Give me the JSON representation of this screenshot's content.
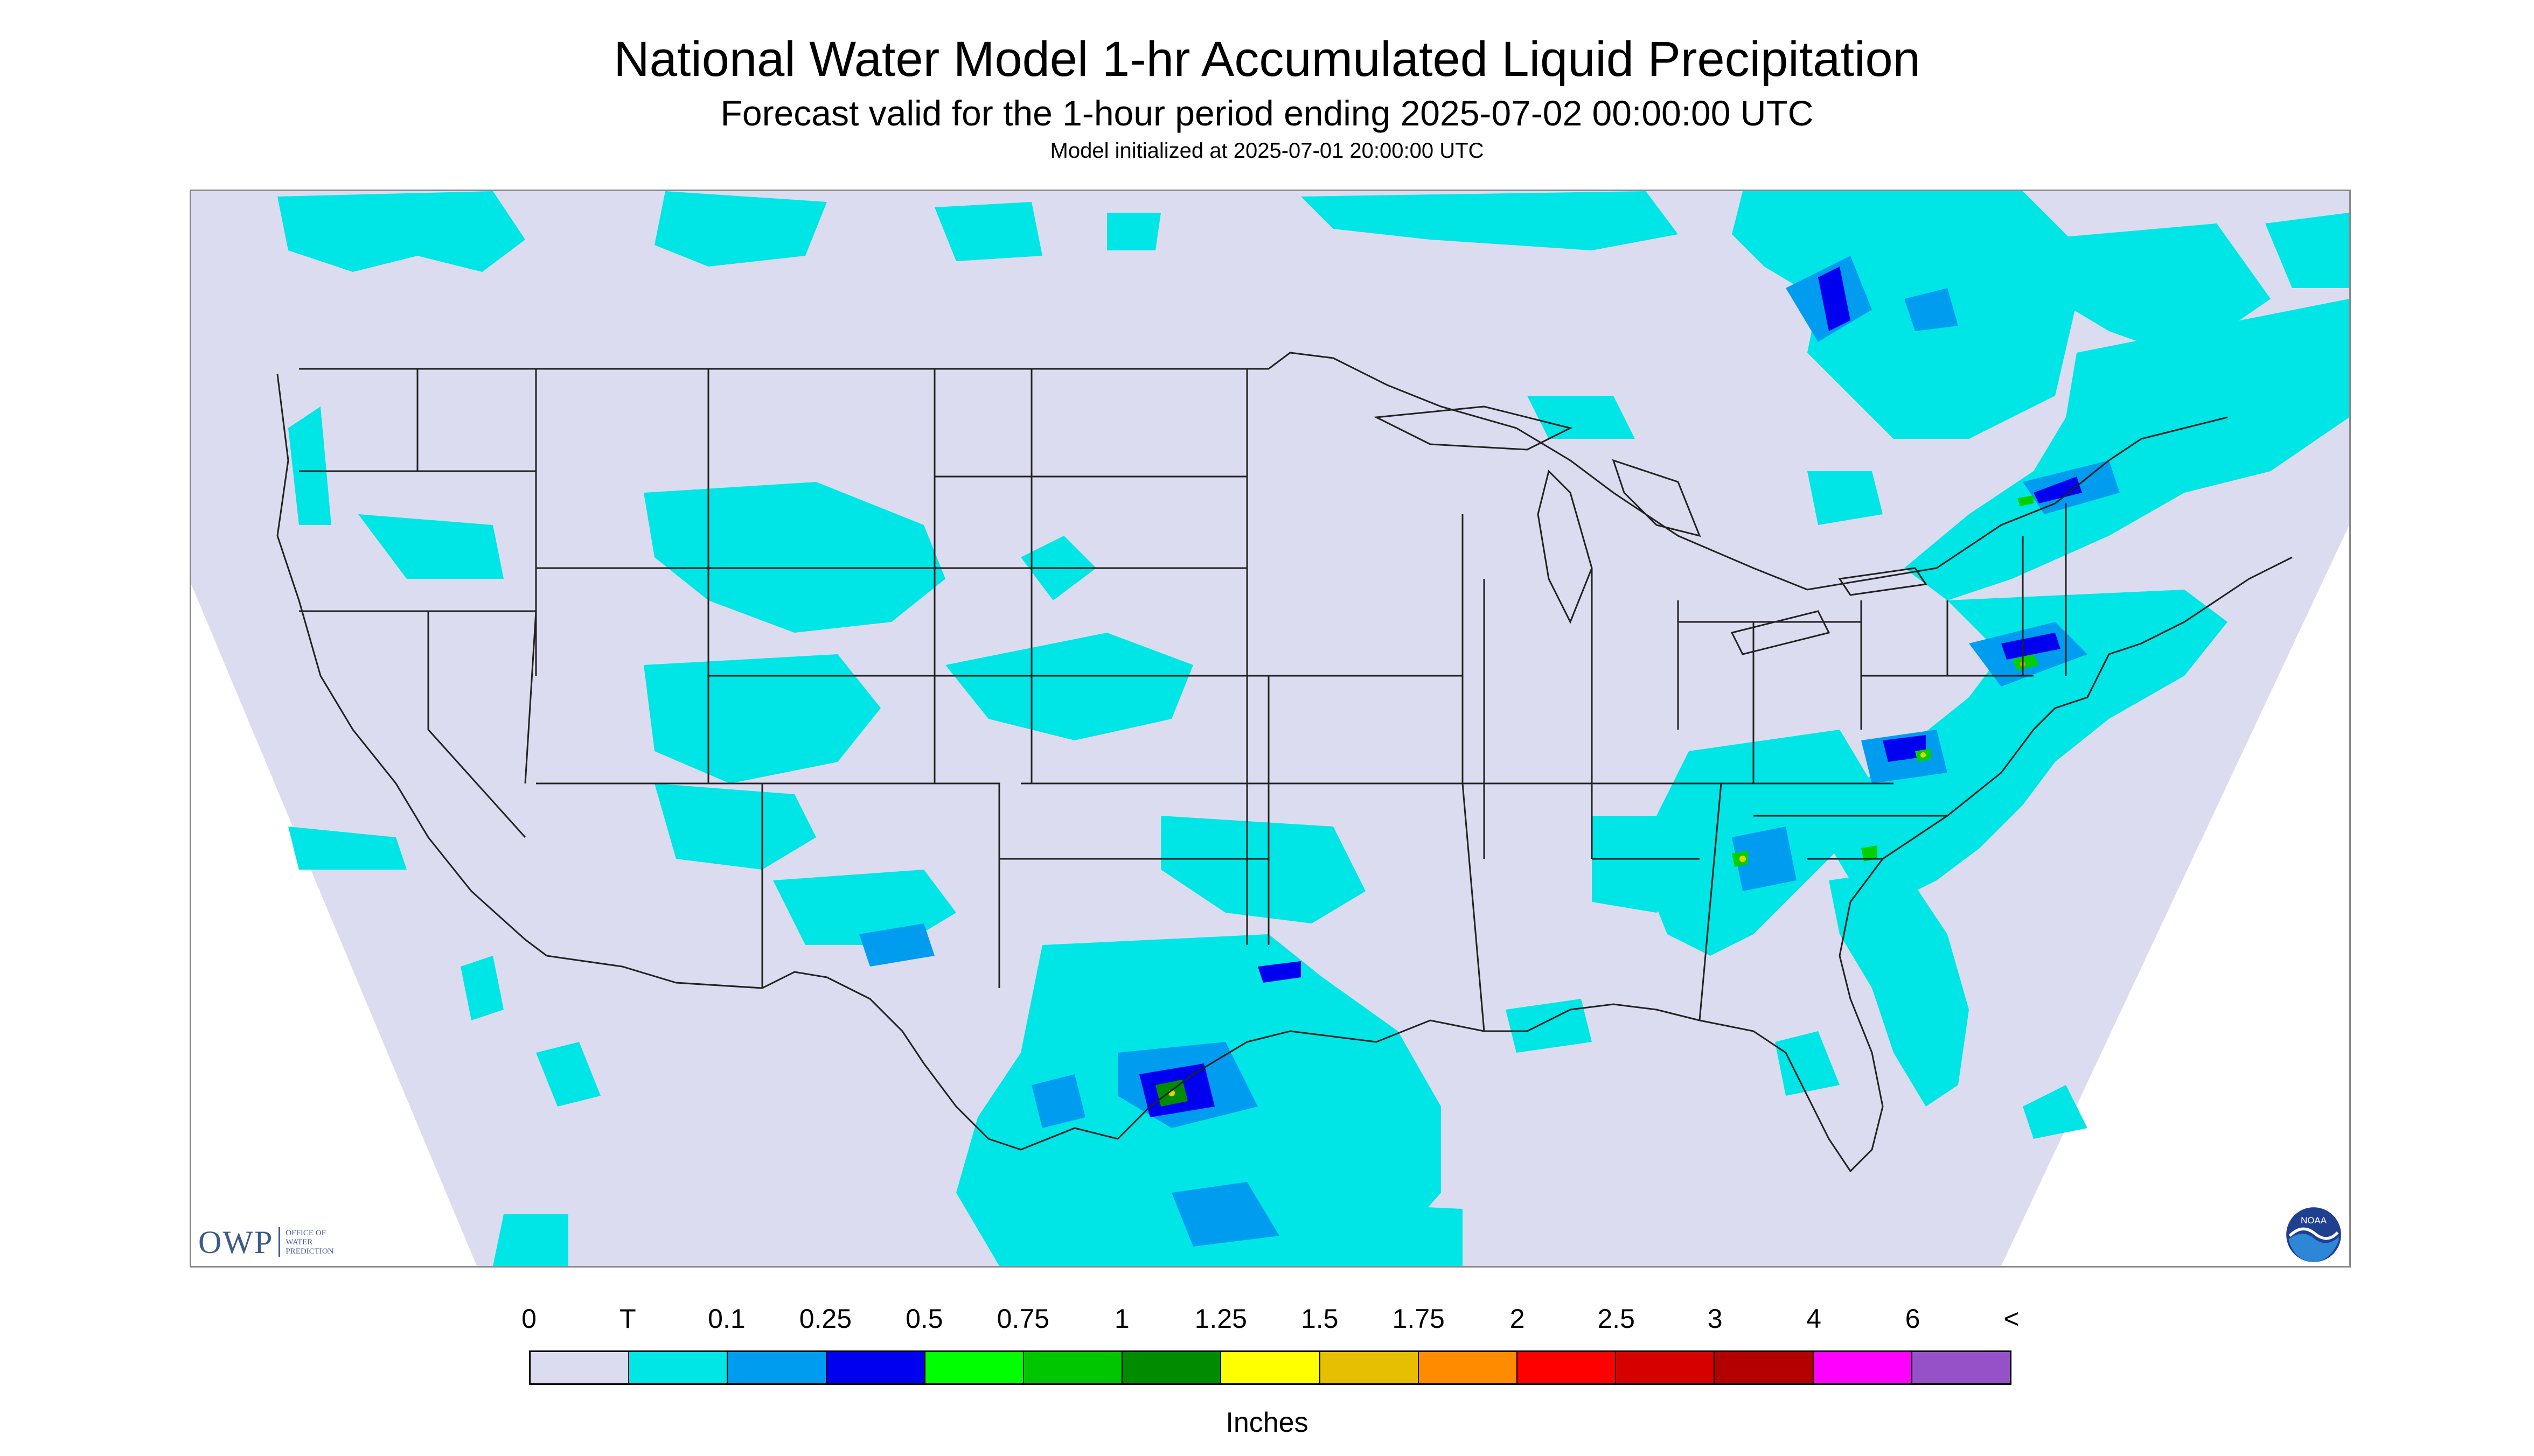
{
  "title": "National Water Model 1-hr Accumulated Liquid Precipitation",
  "subtitle": "Forecast valid for the 1-hour period ending 2025-07-02 00:00:00 UTC",
  "init_text": "Model initialized at 2025-07-01 20:00:00 UTC",
  "logo": {
    "owp_text": "OWP",
    "owp_small": [
      "OFFICE OF",
      "WATER",
      "PREDICTION"
    ],
    "noaa_text": "NOAA"
  },
  "colors": {
    "background": "#dcdcf0",
    "trace": "#00e5e5",
    "light_blue": "#009cf0",
    "blue": "#0000f0",
    "green": "#00d000",
    "dark_green": "#008c00",
    "yellow": "#e6d200",
    "map_lines": "#222222"
  },
  "legend": {
    "labels": [
      "0",
      "T",
      "0.1",
      "0.25",
      "0.5",
      "0.75",
      "1",
      "1.25",
      "1.5",
      "1.75",
      "2",
      "2.5",
      "3",
      "4",
      "6",
      "<"
    ],
    "swatches": [
      "#dcdcf0",
      "#00e5e5",
      "#009cf0",
      "#0000f0",
      "#00ff00",
      "#00c600",
      "#008c00",
      "#ffff00",
      "#e6bf00",
      "#ff8c00",
      "#ff0000",
      "#d70000",
      "#b40000",
      "#ff00ff",
      "#9650c8"
    ],
    "units": "Inches"
  }
}
